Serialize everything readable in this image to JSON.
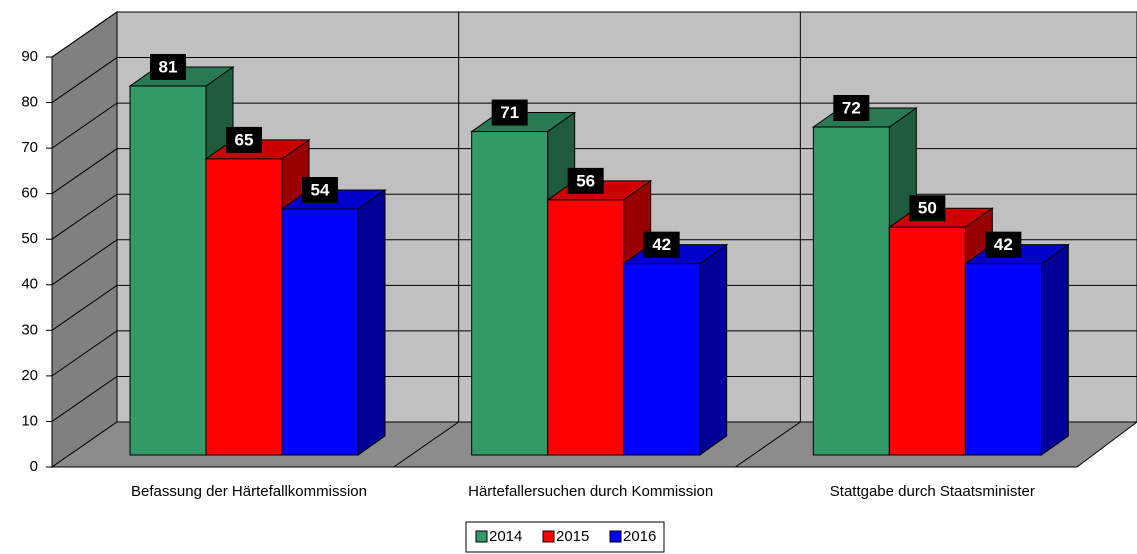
{
  "chart_data": {
    "type": "bar",
    "categories": [
      "Befassung der Härtefallkommission",
      "Härtefallersuchen durch Kommission",
      "Stattgabe durch Staatsminister"
    ],
    "series": [
      {
        "name": "2014",
        "color": "#339966",
        "values": [
          81,
          71,
          72
        ]
      },
      {
        "name": "2015",
        "color": "#ff0000",
        "values": [
          65,
          56,
          50
        ]
      },
      {
        "name": "2016",
        "color": "#0000ff",
        "values": [
          54,
          42,
          42
        ]
      }
    ],
    "ylim": [
      0,
      90
    ],
    "yticks": [
      0,
      10,
      20,
      30,
      40,
      50,
      60,
      70,
      80,
      90
    ],
    "grid": true,
    "legend": "bottom"
  }
}
